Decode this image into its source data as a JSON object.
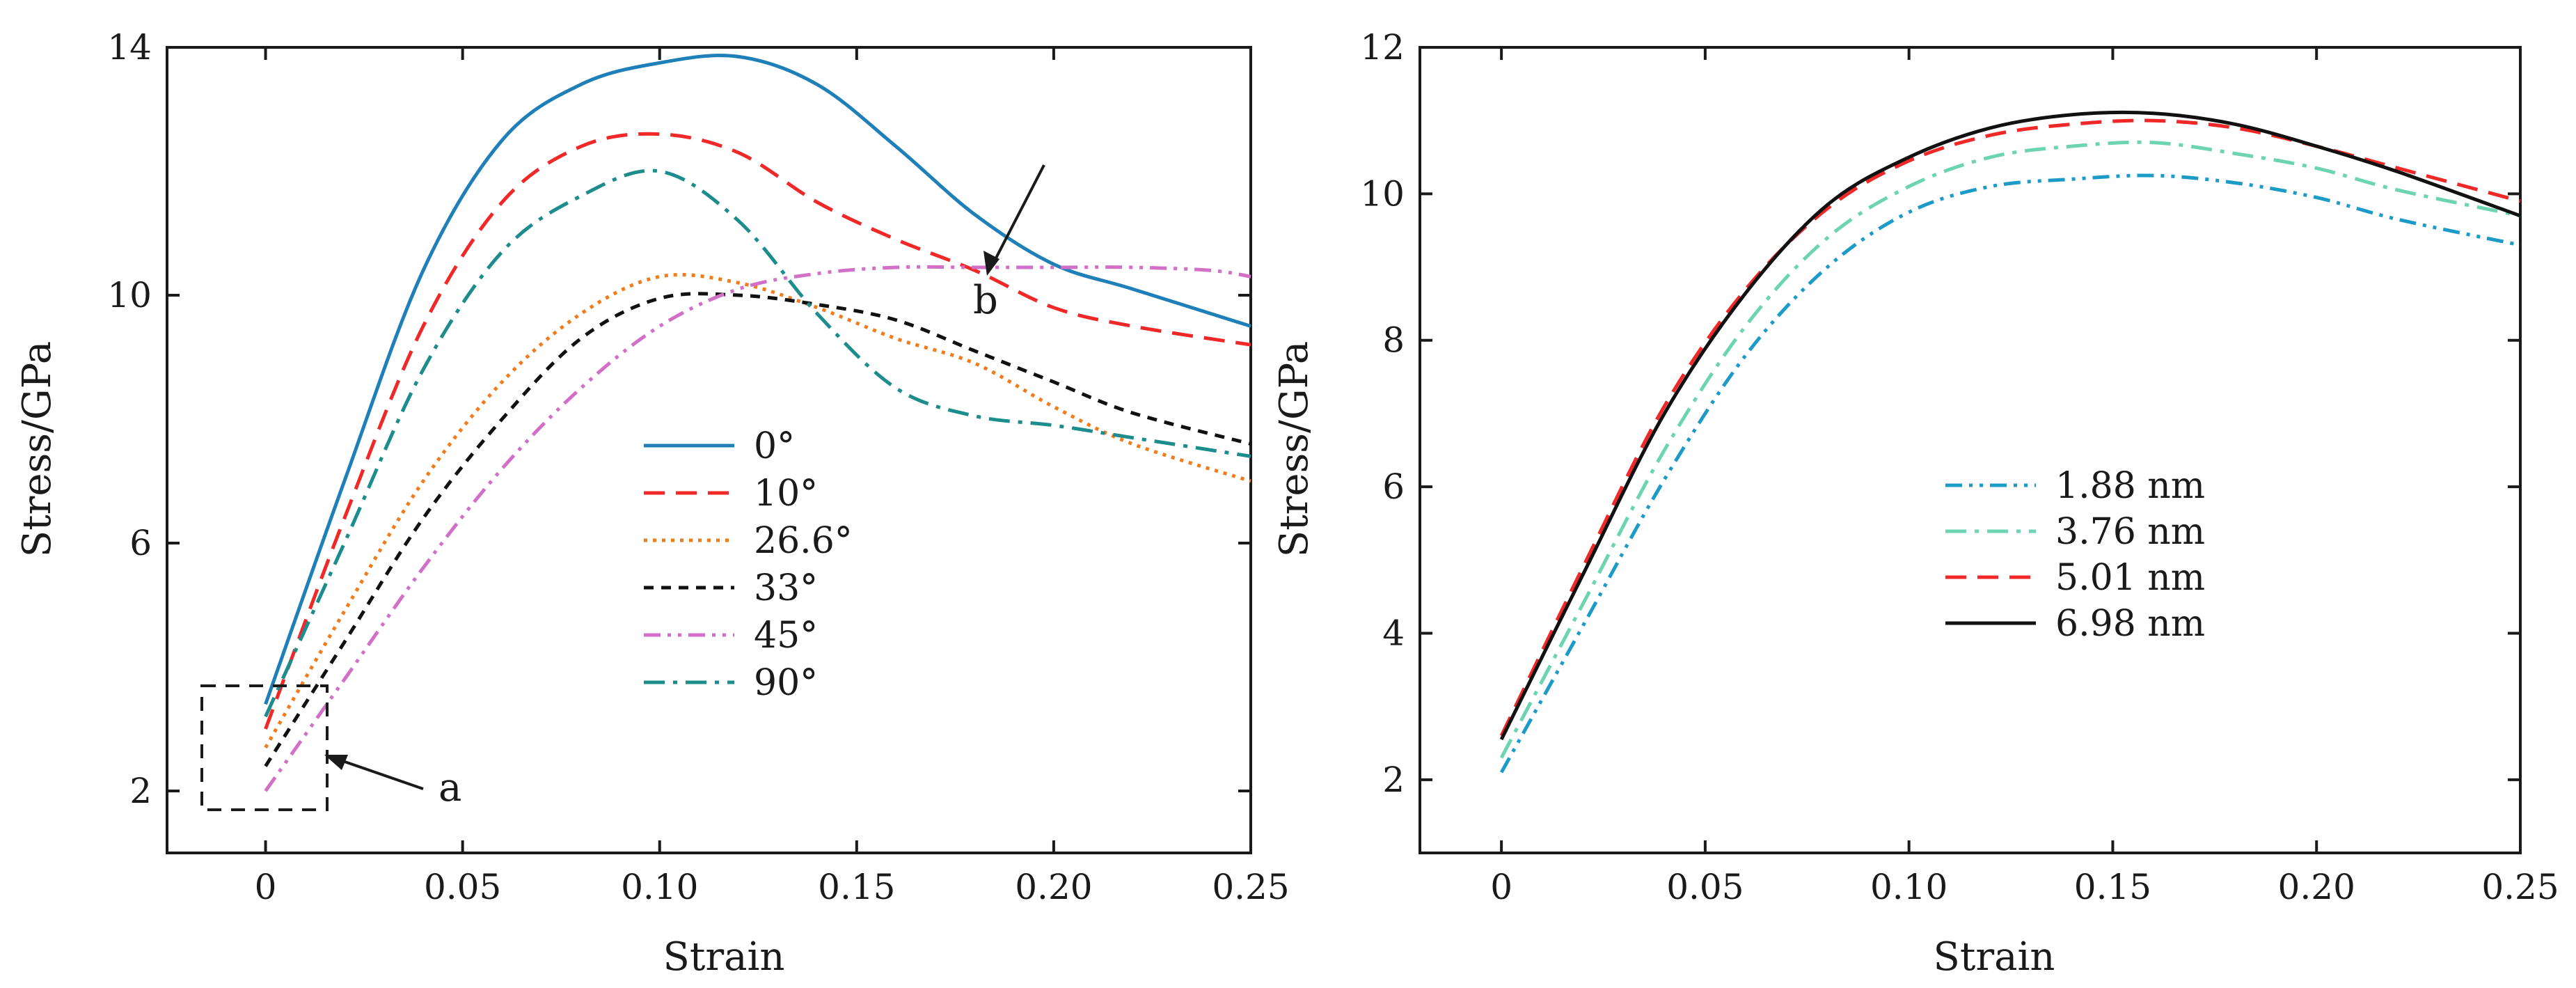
{
  "chart_data": [
    {
      "type": "line",
      "xlabel": "Strain",
      "ylabel": "Stress/GPa",
      "xlim": [
        -0.025,
        0.25
      ],
      "ylim": [
        1,
        14
      ],
      "xticks": [
        0,
        0.05,
        0.1,
        0.15,
        0.2,
        0.25
      ],
      "xtick_labels": [
        "0",
        "0.05",
        "0.10",
        "0.15",
        "0.20",
        "0.25"
      ],
      "yticks": [
        2,
        6,
        10,
        14
      ],
      "ytick_labels": [
        "2",
        "6",
        "10",
        "14"
      ],
      "grid": false,
      "legend_position": "center-right",
      "series": [
        {
          "name": "0°",
          "color": "#1f7fb8",
          "dash": "solid",
          "x": [
            0.0,
            0.02,
            0.04,
            0.06,
            0.08,
            0.1,
            0.12,
            0.14,
            0.16,
            0.18,
            0.2,
            0.22,
            0.25
          ],
          "y": [
            3.4,
            7.0,
            10.4,
            12.5,
            13.4,
            13.75,
            13.85,
            13.4,
            12.4,
            11.3,
            10.5,
            10.1,
            9.5
          ]
        },
        {
          "name": "10°",
          "color": "#f02828",
          "dash": "dashed",
          "x": [
            0.0,
            0.02,
            0.04,
            0.06,
            0.08,
            0.1,
            0.12,
            0.14,
            0.16,
            0.18,
            0.2,
            0.22,
            0.25
          ],
          "y": [
            3.0,
            6.4,
            9.5,
            11.5,
            12.4,
            12.6,
            12.3,
            11.5,
            10.9,
            10.4,
            9.8,
            9.5,
            9.2
          ]
        },
        {
          "name": "26.6°",
          "color": "#f07c1c",
          "dash": "dotted",
          "x": [
            0.0,
            0.02,
            0.04,
            0.06,
            0.08,
            0.1,
            0.12,
            0.14,
            0.16,
            0.18,
            0.2,
            0.22,
            0.25
          ],
          "y": [
            2.7,
            4.9,
            7.0,
            8.6,
            9.7,
            10.3,
            10.2,
            9.8,
            9.3,
            8.9,
            8.2,
            7.6,
            7.0
          ]
        },
        {
          "name": "33°",
          "color": "#111111",
          "dash": "short-dashed",
          "x": [
            0.0,
            0.02,
            0.04,
            0.06,
            0.08,
            0.1,
            0.12,
            0.14,
            0.16,
            0.18,
            0.2,
            0.22,
            0.25
          ],
          "y": [
            2.4,
            4.4,
            6.4,
            8.0,
            9.3,
            9.95,
            10.0,
            9.85,
            9.6,
            9.1,
            8.6,
            8.1,
            7.6
          ]
        },
        {
          "name": "45°",
          "color": "#d270c8",
          "dash": "dash-dot-dot",
          "x": [
            0.0,
            0.02,
            0.04,
            0.06,
            0.08,
            0.1,
            0.12,
            0.14,
            0.16,
            0.18,
            0.2,
            0.22,
            0.24,
            0.25
          ],
          "y": [
            2.0,
            3.8,
            5.6,
            7.2,
            8.5,
            9.5,
            10.1,
            10.35,
            10.45,
            10.45,
            10.45,
            10.45,
            10.4,
            10.3
          ]
        },
        {
          "name": "90°",
          "color": "#1c8c8c",
          "dash": "dash-dot",
          "x": [
            0.0,
            0.02,
            0.04,
            0.06,
            0.08,
            0.1,
            0.12,
            0.14,
            0.16,
            0.18,
            0.2,
            0.22,
            0.25
          ],
          "y": [
            3.2,
            6.0,
            8.8,
            10.7,
            11.6,
            12.0,
            11.2,
            9.7,
            8.5,
            8.05,
            7.9,
            7.7,
            7.4
          ]
        }
      ],
      "annotations": [
        "a",
        "b"
      ]
    },
    {
      "type": "line",
      "xlabel": "Strain",
      "ylabel": "Stress/GPa",
      "xlim": [
        -0.02,
        0.25
      ],
      "ylim": [
        1,
        12
      ],
      "xticks": [
        0,
        0.05,
        0.1,
        0.15,
        0.2,
        0.25
      ],
      "xtick_labels": [
        "0",
        "0.05",
        "0.10",
        "0.15",
        "0.20",
        "0.25"
      ],
      "yticks": [
        2,
        4,
        6,
        8,
        10,
        12
      ],
      "ytick_labels": [
        "2",
        "4",
        "6",
        "8",
        "10",
        "12"
      ],
      "grid": false,
      "legend_position": "center-right",
      "series": [
        {
          "name": "1.88 nm",
          "color": "#1c9ac8",
          "dash": "dash-dot-dot",
          "x": [
            0.0,
            0.02,
            0.04,
            0.06,
            0.08,
            0.1,
            0.12,
            0.14,
            0.16,
            0.18,
            0.2,
            0.22,
            0.25
          ],
          "y": [
            2.1,
            4.1,
            6.1,
            7.8,
            9.0,
            9.75,
            10.1,
            10.2,
            10.25,
            10.15,
            9.95,
            9.65,
            9.3
          ]
        },
        {
          "name": "3.76 nm",
          "color": "#6cd4b0",
          "dash": "dash-dot",
          "x": [
            0.0,
            0.02,
            0.04,
            0.06,
            0.08,
            0.1,
            0.12,
            0.14,
            0.16,
            0.18,
            0.2,
            0.22,
            0.25
          ],
          "y": [
            2.3,
            4.4,
            6.5,
            8.2,
            9.4,
            10.1,
            10.5,
            10.65,
            10.7,
            10.55,
            10.35,
            10.05,
            9.7
          ]
        },
        {
          "name": "5.01 nm",
          "color": "#f02828",
          "dash": "dashed",
          "x": [
            0.0,
            0.02,
            0.04,
            0.06,
            0.08,
            0.1,
            0.12,
            0.14,
            0.16,
            0.18,
            0.2,
            0.22,
            0.25
          ],
          "y": [
            2.6,
            4.9,
            7.1,
            8.7,
            9.8,
            10.45,
            10.8,
            10.95,
            11.0,
            10.9,
            10.65,
            10.35,
            9.9
          ]
        },
        {
          "name": "6.98 nm",
          "color": "#111111",
          "dash": "solid",
          "x": [
            0.0,
            0.02,
            0.04,
            0.06,
            0.08,
            0.1,
            0.12,
            0.14,
            0.16,
            0.18,
            0.2,
            0.22,
            0.25
          ],
          "y": [
            2.55,
            4.8,
            7.0,
            8.65,
            9.85,
            10.5,
            10.9,
            11.08,
            11.1,
            10.95,
            10.65,
            10.3,
            9.7
          ]
        }
      ]
    }
  ]
}
